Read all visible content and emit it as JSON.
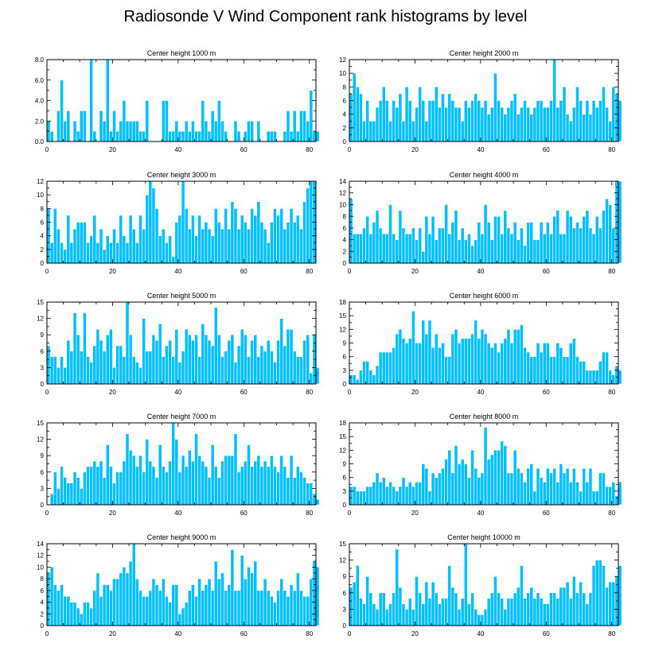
{
  "figure": {
    "title": "Radiosonde V Wind Component rank histograms by level",
    "bar_color": "#00BFFF",
    "bar_edge_color": "#FFFFFF"
  },
  "chart_data": [
    {
      "type": "bar",
      "title": "Center height 1000 m",
      "xlim": [
        0,
        82
      ],
      "ylim": [
        0,
        8
      ],
      "xticks": [
        0,
        20,
        40,
        60,
        80
      ],
      "yticks": [
        0,
        2,
        4,
        6,
        8
      ],
      "ytick_labels": [
        "0.0",
        "2.0",
        "4.0",
        "6.0",
        "8.0"
      ],
      "values": [
        2,
        1,
        0,
        3,
        6,
        2,
        3,
        0,
        2,
        1,
        3,
        3,
        0,
        8,
        1,
        0,
        3,
        2,
        8,
        1,
        3,
        1,
        2,
        4,
        2,
        2,
        2,
        2,
        1,
        1,
        4,
        0,
        0,
        0,
        0,
        4,
        4,
        1,
        1,
        2,
        1,
        1,
        2,
        1,
        2,
        1,
        1,
        4,
        2,
        1,
        3,
        2,
        4,
        2,
        1,
        0,
        0,
        2,
        1,
        0,
        1,
        2,
        2,
        0,
        2,
        0,
        0,
        1,
        1,
        1,
        0,
        0,
        1,
        3,
        1,
        3,
        1,
        3,
        3,
        2,
        5,
        1,
        1
      ]
    },
    {
      "type": "bar",
      "title": "Center height 2000 m",
      "xlim": [
        0,
        82
      ],
      "ylim": [
        0,
        12
      ],
      "xticks": [
        0,
        20,
        40,
        60,
        80
      ],
      "yticks": [
        0,
        2,
        4,
        6,
        8,
        10,
        12
      ],
      "ytick_labels": [
        "0",
        "2",
        "4",
        "6",
        "8",
        "10",
        "12"
      ],
      "values": [
        7,
        10,
        8,
        7,
        3,
        6,
        3,
        3,
        5,
        6,
        8,
        6,
        3,
        6,
        5,
        7,
        3,
        8,
        6,
        3,
        5,
        8,
        6,
        3,
        6,
        6,
        8,
        5,
        7,
        5,
        7,
        6,
        5,
        5,
        3,
        6,
        5,
        6,
        7,
        6,
        5,
        6,
        4,
        5,
        10,
        6,
        5,
        4,
        5,
        6,
        7,
        4,
        5,
        6,
        5,
        4,
        5,
        6,
        6,
        5,
        5,
        6,
        12,
        5,
        6,
        8,
        4,
        3,
        5,
        8,
        6,
        4,
        6,
        4,
        6,
        5,
        6,
        8,
        5,
        3,
        8,
        7,
        6
      ]
    },
    {
      "type": "bar",
      "title": "Center height 3000 m",
      "xlim": [
        0,
        82
      ],
      "ylim": [
        0,
        12
      ],
      "xticks": [
        0,
        20,
        40,
        60,
        80
      ],
      "yticks": [
        0,
        2,
        4,
        6,
        8,
        10,
        12
      ],
      "ytick_labels": [
        "0",
        "2",
        "4",
        "6",
        "8",
        "10",
        "12"
      ],
      "values": [
        8,
        3,
        8,
        5,
        3,
        2,
        7,
        3,
        5,
        6,
        6,
        6,
        3,
        4,
        7,
        3,
        5,
        2,
        4,
        3,
        5,
        3,
        7,
        4,
        3,
        7,
        5,
        3,
        7,
        5,
        10,
        12,
        11,
        8,
        4,
        5,
        3,
        4,
        1,
        6,
        7,
        12,
        8,
        5,
        7,
        4,
        7,
        5,
        6,
        5,
        4,
        8,
        6,
        5,
        8,
        5,
        9,
        8,
        5,
        7,
        6,
        5,
        8,
        7,
        9,
        6,
        5,
        3,
        6,
        8,
        7,
        8,
        5,
        6,
        8,
        6,
        7,
        5,
        9,
        11,
        12,
        12
      ]
    },
    {
      "type": "bar",
      "title": "Center height 4000 m",
      "xlim": [
        0,
        82
      ],
      "ylim": [
        0,
        14
      ],
      "xticks": [
        0,
        20,
        40,
        60,
        80
      ],
      "yticks": [
        0,
        2,
        4,
        6,
        8,
        10,
        12,
        14
      ],
      "ytick_labels": [
        "0",
        "2",
        "4",
        "6",
        "8",
        "10",
        "12",
        "14"
      ],
      "values": [
        11,
        5,
        5,
        5,
        6,
        8,
        5,
        7,
        9,
        6,
        5,
        5,
        10,
        5,
        4,
        9,
        6,
        5,
        5,
        6,
        4,
        6,
        2,
        8,
        5,
        8,
        4,
        6,
        6,
        10,
        5,
        7,
        9,
        4,
        6,
        4,
        5,
        3,
        4,
        7,
        5,
        10,
        7,
        4,
        8,
        8,
        5,
        9,
        6,
        5,
        7,
        4,
        6,
        3,
        7,
        7,
        4,
        4,
        7,
        5,
        7,
        5,
        8,
        9,
        5,
        5,
        9,
        8,
        6,
        7,
        6,
        8,
        9,
        6,
        5,
        8,
        6,
        9,
        11,
        10,
        6,
        14,
        14
      ]
    },
    {
      "type": "bar",
      "title": "Center height 5000 m",
      "xlim": [
        0,
        82
      ],
      "ylim": [
        0,
        15
      ],
      "xticks": [
        0,
        20,
        40,
        60,
        80
      ],
      "yticks": [
        0,
        3,
        6,
        9,
        12,
        15
      ],
      "ytick_labels": [
        "0",
        "3",
        "6",
        "9",
        "12",
        "15"
      ],
      "values": [
        7,
        5,
        5,
        3,
        5,
        3,
        8,
        6,
        13,
        9,
        6,
        13,
        5,
        4,
        7,
        10,
        8,
        6,
        9,
        10,
        3,
        7,
        7,
        5,
        15,
        9,
        5,
        4,
        3,
        12,
        6,
        6,
        9,
        8,
        11,
        5,
        7,
        8,
        5,
        10,
        4,
        6,
        10,
        9,
        8,
        9,
        5,
        11,
        9,
        8,
        7,
        14,
        9,
        5,
        6,
        8,
        9,
        4,
        7,
        10,
        9,
        5,
        8,
        9,
        5,
        7,
        6,
        8,
        6,
        4,
        8,
        12,
        7,
        10,
        10,
        6,
        5,
        5,
        8,
        9,
        2,
        9,
        3
      ]
    },
    {
      "type": "bar",
      "title": "Center height 6000 m",
      "xlim": [
        0,
        82
      ],
      "ylim": [
        0,
        18
      ],
      "xticks": [
        0,
        20,
        40,
        60,
        80
      ],
      "yticks": [
        0,
        3,
        6,
        9,
        12,
        15,
        18
      ],
      "ytick_labels": [
        "0",
        "3",
        "6",
        "9",
        "12",
        "15",
        "18"
      ],
      "values": [
        2,
        2,
        1,
        3,
        5,
        5,
        3,
        2,
        4,
        7,
        7,
        7,
        7,
        8,
        11,
        12,
        10,
        9,
        10,
        16,
        9,
        9,
        14,
        11,
        14,
        8,
        11,
        8,
        9,
        6,
        6,
        11,
        12,
        9,
        10,
        10,
        10,
        11,
        14,
        10,
        12,
        11,
        9,
        8,
        9,
        7,
        9,
        10,
        12,
        9,
        12,
        12,
        13,
        8,
        7,
        6,
        6,
        9,
        7,
        9,
        9,
        6,
        6,
        9,
        8,
        6,
        6,
        9,
        10,
        6,
        5,
        5,
        3,
        3,
        3,
        3,
        5,
        7,
        7,
        3,
        2,
        4,
        3
      ]
    },
    {
      "type": "bar",
      "title": "Center height 7000 m",
      "xlim": [
        0,
        82
      ],
      "ylim": [
        0,
        15
      ],
      "xticks": [
        0,
        20,
        40,
        60,
        80
      ],
      "yticks": [
        0,
        3,
        6,
        9,
        12,
        15
      ],
      "ytick_labels": [
        "0",
        "3",
        "6",
        "9",
        "12",
        "15"
      ],
      "values": [
        0,
        2,
        6,
        3,
        7,
        5,
        4,
        4,
        6,
        5,
        3,
        6,
        7,
        7,
        8,
        7,
        8,
        5,
        11,
        7,
        4,
        6,
        6,
        8,
        13,
        10,
        9,
        7,
        9,
        6,
        12,
        8,
        7,
        5,
        11,
        7,
        6,
        8,
        15,
        12,
        6,
        9,
        7,
        10,
        8,
        13,
        9,
        8,
        7,
        5,
        11,
        7,
        5,
        8,
        9,
        9,
        9,
        13,
        6,
        7,
        8,
        11,
        7,
        8,
        9,
        7,
        8,
        7,
        9,
        7,
        6,
        9,
        7,
        5,
        9,
        5,
        7,
        6,
        5,
        4,
        4,
        2,
        1
      ]
    },
    {
      "type": "bar",
      "title": "Center height 8000 m",
      "xlim": [
        0,
        82
      ],
      "ylim": [
        0,
        18
      ],
      "xticks": [
        0,
        20,
        40,
        60,
        80
      ],
      "yticks": [
        0,
        3,
        6,
        9,
        12,
        15,
        18
      ],
      "ytick_labels": [
        "0",
        "3",
        "6",
        "9",
        "12",
        "15",
        "18"
      ],
      "values": [
        4,
        4,
        3,
        3,
        3,
        4,
        4,
        5,
        7,
        5,
        6,
        4,
        5,
        4,
        3,
        4,
        6,
        4,
        5,
        4,
        5,
        5,
        9,
        8,
        3,
        7,
        6,
        7,
        8,
        10,
        12,
        7,
        13,
        9,
        10,
        9,
        6,
        12,
        8,
        6,
        7,
        17,
        10,
        11,
        12,
        12,
        14,
        13,
        7,
        7,
        12,
        8,
        7,
        5,
        8,
        9,
        3,
        8,
        6,
        5,
        8,
        7,
        8,
        5,
        9,
        7,
        8,
        5,
        8,
        5,
        3,
        8,
        5,
        8,
        3,
        3,
        7,
        7,
        4,
        4,
        5,
        2,
        5
      ]
    },
    {
      "type": "bar",
      "title": "Center height 9000 m",
      "xlim": [
        0,
        82
      ],
      "ylim": [
        0,
        14
      ],
      "xticks": [
        0,
        20,
        40,
        60,
        80
      ],
      "yticks": [
        0,
        2,
        4,
        6,
        8,
        10,
        12,
        14
      ],
      "ytick_labels": [
        "0",
        "2",
        "4",
        "6",
        "8",
        "10",
        "12",
        "14"
      ],
      "values": [
        9,
        10,
        7,
        6,
        7,
        5,
        5,
        4,
        4,
        3,
        2,
        4,
        4,
        3,
        6,
        9,
        5,
        7,
        7,
        6,
        8,
        8,
        9,
        10,
        9,
        11,
        14,
        8,
        6,
        5,
        5,
        6,
        8,
        7,
        6,
        8,
        5,
        4,
        7,
        7,
        2,
        3,
        4,
        6,
        7,
        5,
        8,
        6,
        7,
        8,
        6,
        11,
        8,
        9,
        6,
        7,
        13,
        6,
        6,
        12,
        8,
        10,
        9,
        11,
        6,
        6,
        8,
        6,
        5,
        4,
        6,
        8,
        6,
        5,
        7,
        6,
        9,
        6,
        5,
        5,
        8,
        11,
        10
      ]
    },
    {
      "type": "bar",
      "title": "Center height 10000 m",
      "xlim": [
        0,
        82
      ],
      "ylim": [
        0,
        15
      ],
      "xticks": [
        0,
        20,
        40,
        60,
        80
      ],
      "yticks": [
        0,
        3,
        6,
        9,
        12,
        15
      ],
      "ytick_labels": [
        "0",
        "3",
        "6",
        "9",
        "12",
        "15"
      ],
      "values": [
        7,
        8,
        11,
        5,
        4,
        9,
        6,
        4,
        3,
        6,
        6,
        3,
        4,
        6,
        14,
        7,
        4,
        3,
        5,
        3,
        9,
        6,
        4,
        8,
        5,
        8,
        6,
        4,
        5,
        5,
        11,
        7,
        6,
        3,
        5,
        15,
        4,
        6,
        3,
        2,
        2,
        3,
        5,
        6,
        9,
        6,
        5,
        3,
        5,
        5,
        6,
        7,
        11,
        5,
        6,
        7,
        5,
        6,
        5,
        4,
        4,
        6,
        6,
        5,
        7,
        7,
        8,
        5,
        9,
        6,
        8,
        6,
        4,
        6,
        11,
        12,
        12,
        11,
        7,
        8,
        8,
        9,
        11
      ]
    }
  ]
}
